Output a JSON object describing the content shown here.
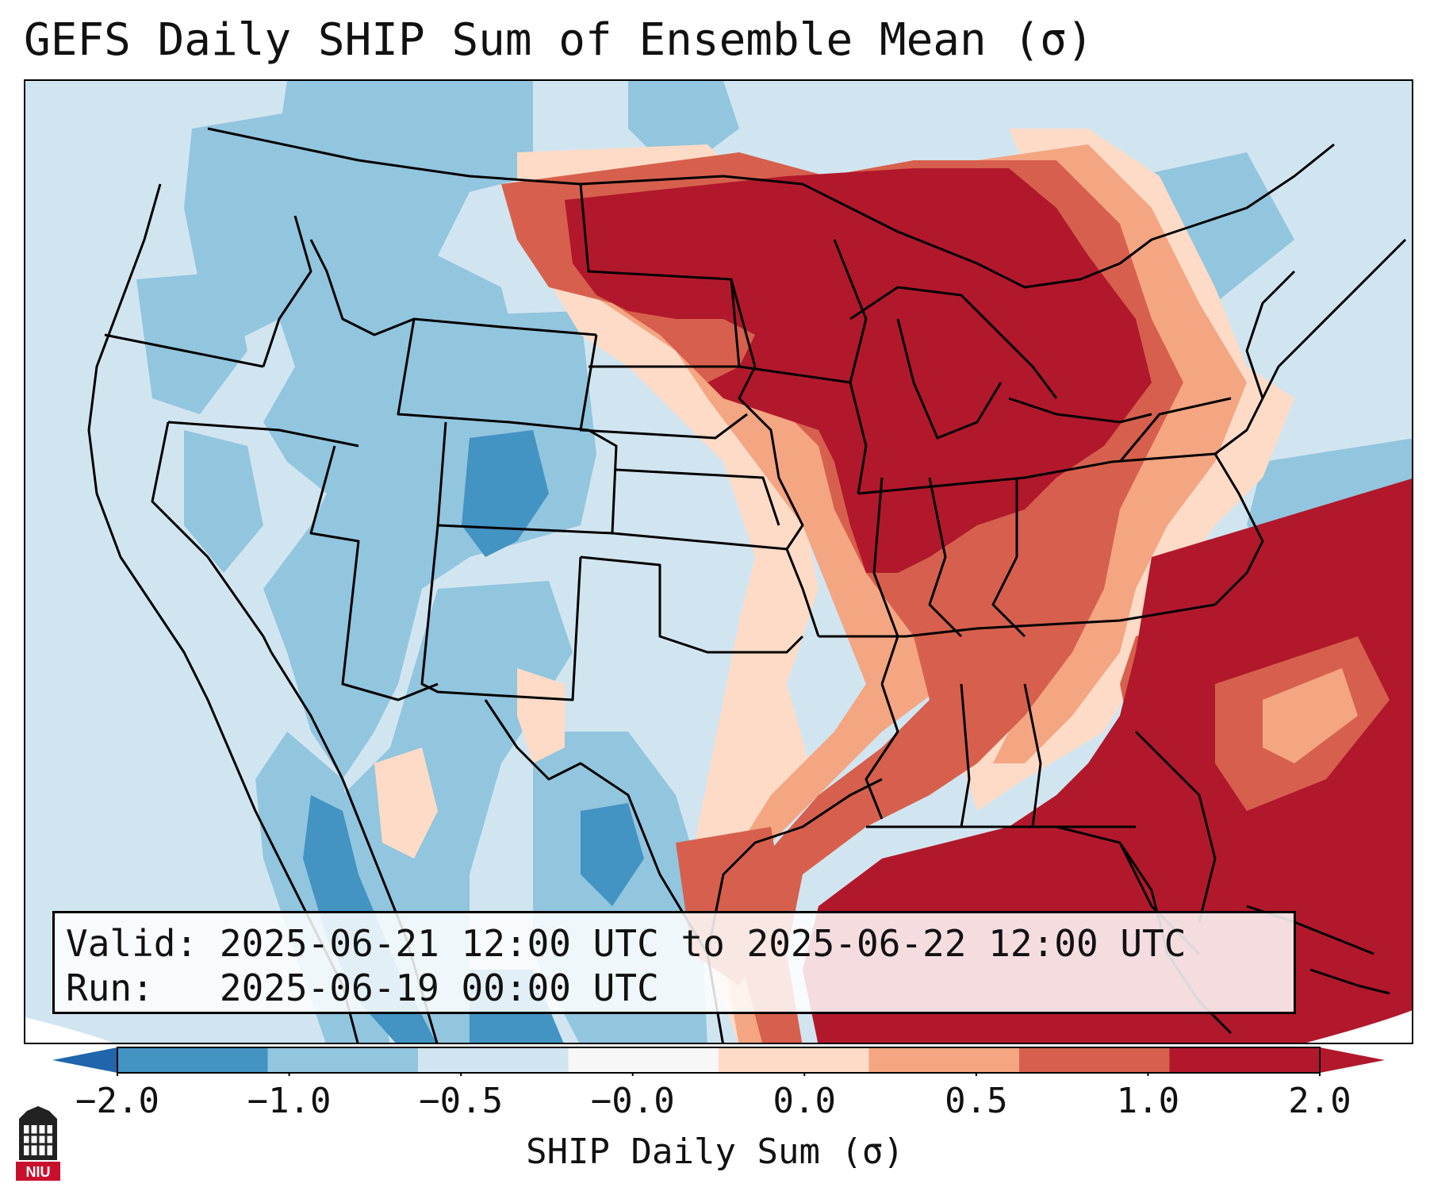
{
  "title": "GEFS Daily SHIP Sum of Ensemble Mean (σ)",
  "info": {
    "valid_label": "Valid:",
    "valid_value": "2025-06-21 12:00 UTC to 2025-06-22 12:00 UTC",
    "run_label": "Run:",
    "run_value": "2025-06-19 00:00 UTC"
  },
  "colorbar": {
    "label": "SHIP Daily Sum (σ)",
    "ticks": [
      "−2.0",
      "−1.0",
      "−0.5",
      "−0.0",
      "0.0",
      "0.5",
      "1.0",
      "2.0"
    ],
    "colors": [
      "#4393c3",
      "#92c5de",
      "#d1e5f0",
      "#f7f7f7",
      "#fddbc7",
      "#f4a582",
      "#d6604d",
      "#b2182b"
    ],
    "extend_low_color": "#2166ac",
    "extend_high_color": "#b2182b"
  },
  "logo": {
    "text": "NIU",
    "icon": "niu-university-logo-icon"
  }
}
